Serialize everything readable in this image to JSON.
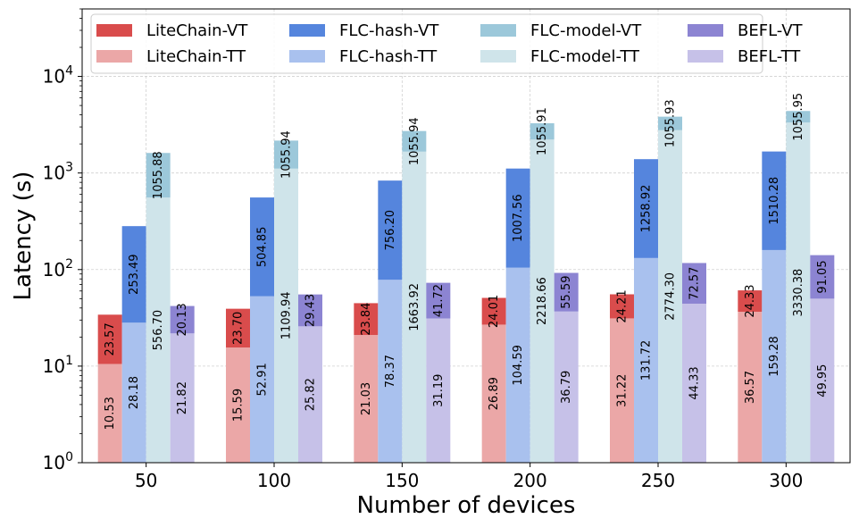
{
  "chart_data": {
    "type": "bar",
    "stacked": true,
    "log_y": true,
    "xlabel": "Number of devices",
    "ylabel": "Latency (s)",
    "categories": [
      "50",
      "100",
      "150",
      "200",
      "250",
      "300"
    ],
    "ylim": [
      1,
      50000
    ],
    "y_ticks": [
      {
        "value": 1,
        "base": "10",
        "exp": "0"
      },
      {
        "value": 10,
        "base": "10",
        "exp": "1"
      },
      {
        "value": 100,
        "base": "10",
        "exp": "2"
      },
      {
        "value": 1000,
        "base": "10",
        "exp": "3"
      },
      {
        "value": 10000,
        "base": "10",
        "exp": "4"
      }
    ],
    "grid": true,
    "legend_position": "top",
    "groups": [
      {
        "name": "LiteChain",
        "tt": {
          "name": "LiteChain-TT",
          "color": "#eba7a7",
          "values": [
            10.53,
            15.59,
            21.03,
            26.89,
            31.22,
            36.57
          ],
          "labels": [
            "10.53",
            "15.59",
            "21.03",
            "26.89",
            "31.22",
            "36.57"
          ]
        },
        "vt": {
          "name": "LiteChain-VT",
          "color": "#d94c4c",
          "values": [
            23.57,
            23.7,
            23.84,
            24.01,
            24.21,
            24.33
          ],
          "labels": [
            "23.57",
            "23.70",
            "23.84",
            "24.01",
            "24.21",
            "24.33"
          ]
        }
      },
      {
        "name": "FLC-hash",
        "tt": {
          "name": "FLC-hash-TT",
          "color": "#a9c1ee",
          "values": [
            28.18,
            52.91,
            78.37,
            104.59,
            131.72,
            159.28
          ],
          "labels": [
            "28.18",
            "52.91",
            "78.37",
            "104.59",
            "131.72",
            "159.28"
          ]
        },
        "vt": {
          "name": "FLC-hash-VT",
          "color": "#5585dd",
          "values": [
            253.49,
            504.85,
            756.2,
            1007.56,
            1258.92,
            1510.28
          ],
          "labels": [
            "253.49",
            "504.85",
            "756.20",
            "1007.56",
            "1258.92",
            "1510.28"
          ]
        }
      },
      {
        "name": "FLC-model",
        "tt": {
          "name": "FLC-model-TT",
          "color": "#cfe4ea",
          "values": [
            556.7,
            1109.94,
            1663.92,
            2218.66,
            2774.3,
            3330.38
          ],
          "labels": [
            "556.70",
            "1109.94",
            "1663.92",
            "2218.66",
            "2774.30",
            "3330.38"
          ]
        },
        "vt": {
          "name": "FLC-model-VT",
          "color": "#9cc8da",
          "values": [
            1055.88,
            1055.94,
            1055.94,
            1055.91,
            1055.93,
            1055.95
          ],
          "labels": [
            "1055.88",
            "1055.94",
            "1055.94",
            "1055.91",
            "1055.93",
            "1055.95"
          ]
        }
      },
      {
        "name": "BEFL",
        "tt": {
          "name": "BEFL-TT",
          "color": "#c6c1e8",
          "values": [
            21.82,
            25.82,
            31.19,
            36.79,
            44.33,
            49.95
          ],
          "labels": [
            "21.82",
            "25.82",
            "31.19",
            "36.79",
            "44.33",
            "49.95"
          ]
        },
        "vt": {
          "name": "BEFL-VT",
          "color": "#8c84d2",
          "values": [
            20.13,
            29.43,
            41.72,
            55.59,
            72.57,
            91.05
          ],
          "labels": [
            "20.13",
            "29.43",
            "41.72",
            "55.59",
            "72.57",
            "91.05"
          ]
        }
      }
    ],
    "legend": [
      {
        "label": "LiteChain-VT",
        "color": "#d94c4c"
      },
      {
        "label": "LiteChain-TT",
        "color": "#eba7a7"
      },
      {
        "label": "FLC-hash-VT",
        "color": "#5585dd"
      },
      {
        "label": "FLC-hash-TT",
        "color": "#a9c1ee"
      },
      {
        "label": "FLC-model-VT",
        "color": "#9cc8da"
      },
      {
        "label": "FLC-model-TT",
        "color": "#cfe4ea"
      },
      {
        "label": "BEFL-VT",
        "color": "#8c84d2"
      },
      {
        "label": "BEFL-TT",
        "color": "#c6c1e8"
      }
    ]
  }
}
